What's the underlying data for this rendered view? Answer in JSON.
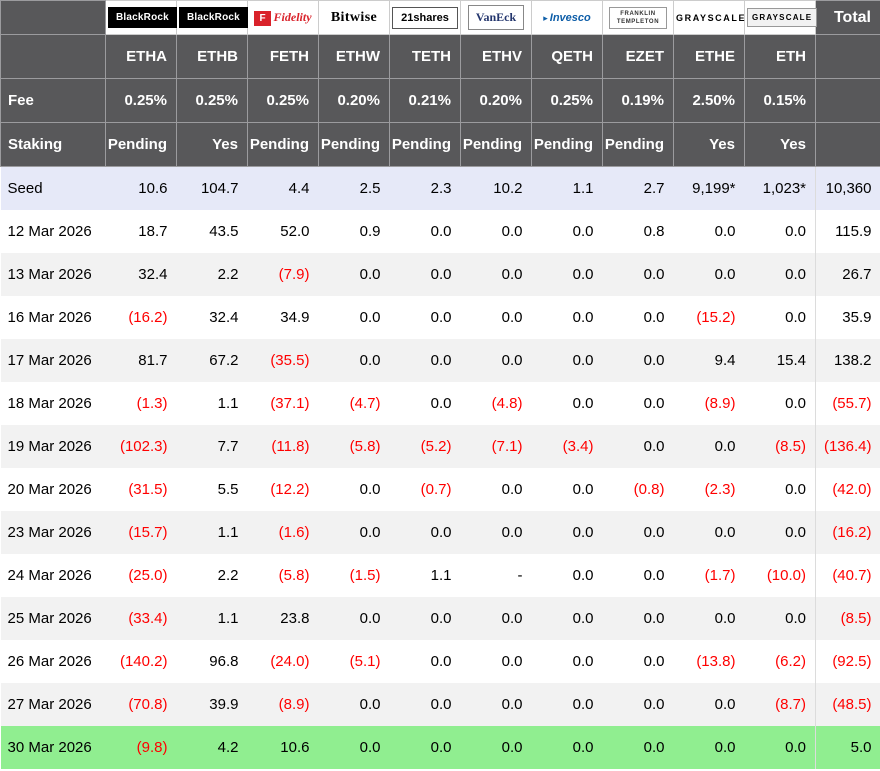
{
  "chart_data": {
    "type": "table",
    "total_label": "Total",
    "issuer_logos": [
      {
        "brand": "blackrock",
        "text": "BlackRock"
      },
      {
        "brand": "blackrock",
        "text": "BlackRock"
      },
      {
        "brand": "fidelity",
        "prefix": "F",
        "text": "Fidelity"
      },
      {
        "brand": "bitwise",
        "text": "Bitwise"
      },
      {
        "brand": "21shares",
        "text": "21shares"
      },
      {
        "brand": "vaneck",
        "text": "VanEck"
      },
      {
        "brand": "invesco",
        "prefix": "▸",
        "text": "Invesco"
      },
      {
        "brand": "franklin",
        "text": "FRANKLIN TEMPLETON"
      },
      {
        "brand": "grayscale",
        "text": "GRAYSCALE"
      },
      {
        "brand": "grayscale",
        "style": "grayscale-box",
        "text": "GRAYSCALE"
      }
    ],
    "tickers": [
      "ETHA",
      "ETHB",
      "FETH",
      "ETHW",
      "TETH",
      "ETHV",
      "QETH",
      "EZET",
      "ETHE",
      "ETH"
    ],
    "fee_row": {
      "label": "Fee",
      "values": [
        "0.25%",
        "0.25%",
        "0.25%",
        "0.20%",
        "0.21%",
        "0.20%",
        "0.25%",
        "0.19%",
        "2.50%",
        "0.15%"
      ]
    },
    "staking_row": {
      "label": "Staking",
      "values": [
        "Pending",
        "Yes",
        "Pending",
        "Pending",
        "Pending",
        "Pending",
        "Pending",
        "Pending",
        "Yes",
        "Yes"
      ]
    },
    "rows": [
      {
        "label": "Seed",
        "type": "seed",
        "values": [
          "10.6",
          "104.7",
          "4.4",
          "2.5",
          "2.3",
          "10.2",
          "1.1",
          "2.7",
          "9,199*",
          "1,023*"
        ],
        "total": "10,360"
      },
      {
        "label": "12 Mar 2026",
        "values": [
          "18.7",
          "43.5",
          "52.0",
          "0.9",
          "0.0",
          "0.0",
          "0.0",
          "0.8",
          "0.0",
          "0.0"
        ],
        "total": "115.9"
      },
      {
        "label": "13 Mar 2026",
        "values": [
          "32.4",
          "2.2",
          "(7.9)",
          "0.0",
          "0.0",
          "0.0",
          "0.0",
          "0.0",
          "0.0",
          "0.0"
        ],
        "total": "26.7"
      },
      {
        "label": "16 Mar 2026",
        "values": [
          "(16.2)",
          "32.4",
          "34.9",
          "0.0",
          "0.0",
          "0.0",
          "0.0",
          "0.0",
          "(15.2)",
          "0.0"
        ],
        "total": "35.9"
      },
      {
        "label": "17 Mar 2026",
        "values": [
          "81.7",
          "67.2",
          "(35.5)",
          "0.0",
          "0.0",
          "0.0",
          "0.0",
          "0.0",
          "9.4",
          "15.4"
        ],
        "total": "138.2"
      },
      {
        "label": "18 Mar 2026",
        "values": [
          "(1.3)",
          "1.1",
          "(37.1)",
          "(4.7)",
          "0.0",
          "(4.8)",
          "0.0",
          "0.0",
          "(8.9)",
          "0.0"
        ],
        "total": "(55.7)"
      },
      {
        "label": "19 Mar 2026",
        "values": [
          "(102.3)",
          "7.7",
          "(11.8)",
          "(5.8)",
          "(5.2)",
          "(7.1)",
          "(3.4)",
          "0.0",
          "0.0",
          "(8.5)"
        ],
        "total": "(136.4)"
      },
      {
        "label": "20 Mar 2026",
        "values": [
          "(31.5)",
          "5.5",
          "(12.2)",
          "0.0",
          "(0.7)",
          "0.0",
          "0.0",
          "(0.8)",
          "(2.3)",
          "0.0"
        ],
        "total": "(42.0)"
      },
      {
        "label": "23 Mar 2026",
        "values": [
          "(15.7)",
          "1.1",
          "(1.6)",
          "0.0",
          "0.0",
          "0.0",
          "0.0",
          "0.0",
          "0.0",
          "0.0"
        ],
        "total": "(16.2)"
      },
      {
        "label": "24 Mar 2026",
        "values": [
          "(25.0)",
          "2.2",
          "(5.8)",
          "(1.5)",
          "1.1",
          "-",
          "0.0",
          "0.0",
          "(1.7)",
          "(10.0)"
        ],
        "total": "(40.7)"
      },
      {
        "label": "25 Mar 2026",
        "values": [
          "(33.4)",
          "1.1",
          "23.8",
          "0.0",
          "0.0",
          "0.0",
          "0.0",
          "0.0",
          "0.0",
          "0.0"
        ],
        "total": "(8.5)"
      },
      {
        "label": "26 Mar 2026",
        "values": [
          "(140.2)",
          "96.8",
          "(24.0)",
          "(5.1)",
          "0.0",
          "0.0",
          "0.0",
          "0.0",
          "(13.8)",
          "(6.2)"
        ],
        "total": "(92.5)"
      },
      {
        "label": "27 Mar 2026",
        "values": [
          "(70.8)",
          "39.9",
          "(8.9)",
          "0.0",
          "0.0",
          "0.0",
          "0.0",
          "0.0",
          "0.0",
          "(8.7)"
        ],
        "total": "(48.5)"
      },
      {
        "label": "30 Mar 2026",
        "type": "highlight",
        "values": [
          "(9.8)",
          "4.2",
          "10.6",
          "0.0",
          "0.0",
          "0.0",
          "0.0",
          "0.0",
          "0.0",
          "0.0"
        ],
        "total": "5.0"
      }
    ],
    "colors": {
      "header_bg": "#58585a",
      "seed_row_bg": "#e6e9f8",
      "alt_row_bg": "#f2f2f2",
      "highlight_row_bg": "#90ee90",
      "negative_text": "#ff0000"
    }
  }
}
